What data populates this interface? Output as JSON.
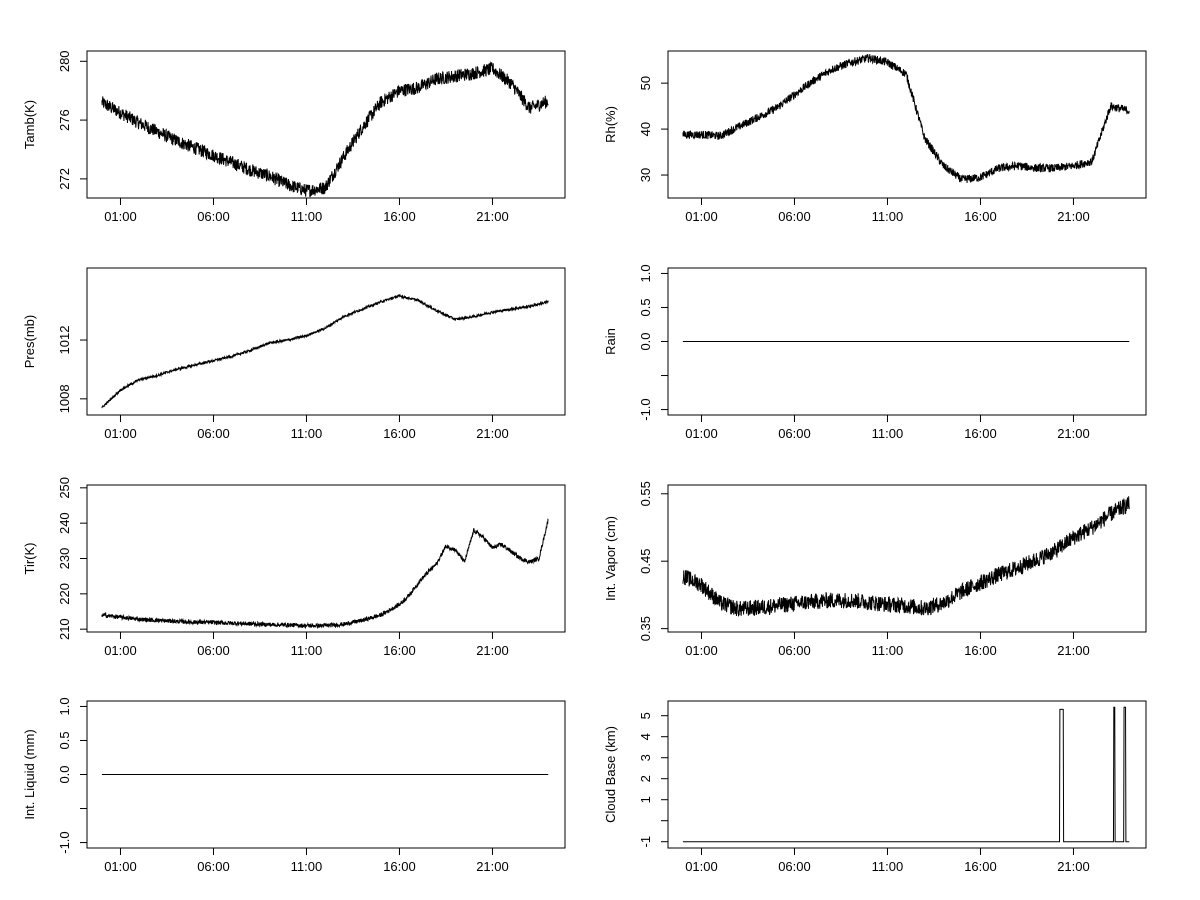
{
  "chart_data": [
    {
      "type": "line",
      "ylabel": "Tamb(K)",
      "x_tick_labels": [
        "01:00",
        "06:00",
        "11:00",
        "16:00",
        "21:00"
      ],
      "x_ticks_hours": [
        1,
        6,
        11,
        16,
        21
      ],
      "xlim_hours": [
        -0.8,
        24.9
      ],
      "ylim": [
        270.7,
        280.7
      ],
      "y_ticks": [
        272,
        276,
        280
      ],
      "y_tick_labels": [
        "272",
        "276",
        "280"
      ],
      "series": [
        {
          "x_hours": [
            0,
            1,
            2,
            3,
            4,
            5,
            6,
            7,
            8,
            9,
            10,
            11,
            12,
            13,
            14,
            15,
            16,
            17,
            18,
            19,
            20,
            21,
            22,
            23,
            24
          ],
          "values": [
            277.2,
            276.5,
            275.8,
            275.2,
            274.6,
            274.1,
            273.6,
            273.1,
            272.6,
            272.2,
            271.6,
            271.2,
            271.4,
            273.5,
            275.5,
            277.2,
            278.0,
            278.2,
            278.8,
            279.0,
            279.2,
            279.5,
            278.5,
            276.8,
            277.3
          ],
          "noise": 0.45
        }
      ]
    },
    {
      "type": "line",
      "ylabel": "Rh(%)",
      "x_tick_labels": [
        "01:00",
        "06:00",
        "11:00",
        "16:00",
        "21:00"
      ],
      "x_ticks_hours": [
        1,
        6,
        11,
        16,
        21
      ],
      "xlim_hours": [
        -0.8,
        24.9
      ],
      "ylim": [
        25,
        57
      ],
      "y_ticks": [
        30,
        40,
        50
      ],
      "y_tick_labels": [
        "30",
        "40",
        "50"
      ],
      "series": [
        {
          "x_hours": [
            0,
            1,
            2,
            3,
            4,
            5,
            6,
            7,
            8,
            9,
            10,
            11,
            12,
            13,
            14,
            15,
            16,
            17,
            18,
            19,
            20,
            21,
            22,
            23,
            24
          ],
          "values": [
            38.8,
            38.8,
            38.5,
            40.5,
            42.5,
            44.5,
            47.5,
            50.5,
            53,
            54.5,
            55.5,
            54.5,
            52,
            38,
            32,
            29,
            29.5,
            31.5,
            32,
            31.5,
            31.5,
            32,
            33,
            45,
            44
          ],
          "noise": 0.9
        }
      ]
    },
    {
      "type": "line",
      "ylabel": "Pres(mb)",
      "x_tick_labels": [
        "01:00",
        "06:00",
        "11:00",
        "16:00",
        "21:00"
      ],
      "x_ticks_hours": [
        1,
        6,
        11,
        16,
        21
      ],
      "xlim_hours": [
        -0.8,
        24.9
      ],
      "ylim": [
        1006.9,
        1016.9
      ],
      "y_ticks": [
        1008,
        1012
      ],
      "y_tick_labels": [
        "1008",
        "1012"
      ],
      "series": [
        {
          "x_hours": [
            0,
            1,
            2,
            3,
            4,
            5,
            6,
            7,
            8,
            9,
            10,
            11,
            12,
            13,
            14,
            15,
            16,
            17,
            18,
            19,
            20,
            21,
            22,
            23,
            24
          ],
          "values": [
            1007.4,
            1008.6,
            1009.3,
            1009.6,
            1010.0,
            1010.3,
            1010.6,
            1010.9,
            1011.3,
            1011.8,
            1012.0,
            1012.3,
            1012.8,
            1013.6,
            1014.1,
            1014.6,
            1015.0,
            1014.7,
            1014.0,
            1013.4,
            1013.6,
            1013.9,
            1014.1,
            1014.3,
            1014.6
          ],
          "noise": 0.08
        }
      ]
    },
    {
      "type": "line",
      "ylabel": "Rain",
      "x_tick_labels": [
        "01:00",
        "06:00",
        "11:00",
        "16:00",
        "21:00"
      ],
      "x_ticks_hours": [
        1,
        6,
        11,
        16,
        21
      ],
      "xlim_hours": [
        -0.8,
        24.9
      ],
      "ylim": [
        -1.08,
        1.08
      ],
      "y_ticks": [
        -1.0,
        -0.5,
        0.0,
        0.5,
        1.0
      ],
      "y_tick_labels": [
        "-1.0",
        "",
        "0.0",
        "0.5",
        "1.0"
      ],
      "series": [
        {
          "x_hours": [
            0,
            24
          ],
          "values": [
            0,
            0
          ],
          "noise": 0
        }
      ]
    },
    {
      "type": "line",
      "ylabel": "Tir(K)",
      "x_tick_labels": [
        "01:00",
        "06:00",
        "11:00",
        "16:00",
        "21:00"
      ],
      "x_ticks_hours": [
        1,
        6,
        11,
        16,
        21
      ],
      "xlim_hours": [
        -0.8,
        24.9
      ],
      "ylim": [
        209.2,
        250.8
      ],
      "y_ticks": [
        210,
        220,
        230,
        240,
        250
      ],
      "y_tick_labels": [
        "210",
        "220",
        "230",
        "240",
        "250"
      ],
      "series": [
        {
          "x_hours": [
            0,
            1,
            2,
            3,
            4,
            5,
            6,
            7,
            8,
            9,
            10,
            11,
            12,
            13,
            14,
            15,
            16,
            16.5,
            17,
            17.5,
            18,
            18.5,
            19,
            19.5,
            20,
            20.5,
            21,
            21.5,
            22,
            22.5,
            23,
            23.5,
            24
          ],
          "values": [
            214.0,
            213.4,
            212.8,
            212.5,
            212.2,
            212.0,
            211.9,
            211.7,
            211.5,
            211.3,
            211.2,
            211.0,
            211.0,
            211.4,
            212.5,
            214.0,
            217.0,
            219.5,
            223.0,
            226.0,
            228.5,
            233.5,
            232.5,
            229.0,
            238.0,
            236.0,
            233.0,
            234.0,
            232.0,
            230.0,
            229.0,
            230.0,
            241.0
          ],
          "noise": 0.6
        }
      ]
    },
    {
      "type": "line",
      "ylabel": "Int. Vapor (cm)",
      "x_tick_labels": [
        "01:00",
        "06:00",
        "11:00",
        "16:00",
        "21:00"
      ],
      "x_ticks_hours": [
        1,
        6,
        11,
        16,
        21
      ],
      "xlim_hours": [
        -0.8,
        24.9
      ],
      "ylim": [
        0.345,
        0.563
      ],
      "y_ticks": [
        0.35,
        0.45,
        0.55
      ],
      "y_tick_labels": [
        "0.35",
        "0.45",
        "0.55"
      ],
      "series": [
        {
          "x_hours": [
            0,
            1,
            2,
            3,
            4,
            5,
            6,
            7,
            8,
            9,
            10,
            11,
            12,
            13,
            14,
            15,
            16,
            17,
            18,
            19,
            20,
            21,
            22,
            23,
            24
          ],
          "values": [
            0.428,
            0.415,
            0.388,
            0.379,
            0.381,
            0.384,
            0.387,
            0.39,
            0.392,
            0.392,
            0.389,
            0.386,
            0.384,
            0.38,
            0.388,
            0.405,
            0.418,
            0.43,
            0.44,
            0.452,
            0.465,
            0.485,
            0.5,
            0.52,
            0.535
          ],
          "noise": 0.012
        }
      ]
    },
    {
      "type": "line",
      "ylabel": "Int. Liquid (mm)",
      "x_tick_labels": [
        "01:00",
        "06:00",
        "11:00",
        "16:00",
        "21:00"
      ],
      "x_ticks_hours": [
        1,
        6,
        11,
        16,
        21
      ],
      "xlim_hours": [
        -0.8,
        24.9
      ],
      "ylim": [
        -1.08,
        1.08
      ],
      "y_ticks": [
        -1.0,
        -0.5,
        0.0,
        0.5,
        1.0
      ],
      "y_tick_labels": [
        "-1.0",
        "",
        "0.0",
        "0.5",
        "1.0"
      ],
      "series": [
        {
          "x_hours": [
            0,
            24
          ],
          "values": [
            0,
            0
          ],
          "noise": 0
        }
      ]
    },
    {
      "type": "line",
      "ylabel": "Cloud Base (km)",
      "x_tick_labels": [
        "01:00",
        "06:00",
        "11:00",
        "16:00",
        "21:00"
      ],
      "x_ticks_hours": [
        1,
        6,
        11,
        16,
        21
      ],
      "xlim_hours": [
        -0.8,
        24.9
      ],
      "ylim": [
        -1.3,
        5.7
      ],
      "y_ticks": [
        -1,
        0,
        1,
        2,
        3,
        4,
        5
      ],
      "y_tick_labels": [
        "-1",
        "",
        "1",
        "2",
        "3",
        "4",
        "5"
      ],
      "series": [
        {
          "x_hours": [
            0,
            20.25,
            20.27,
            20.45,
            20.47,
            23.15,
            23.17,
            23.22,
            23.24,
            23.7,
            23.72,
            23.8,
            23.82,
            24
          ],
          "values": [
            -1,
            -1,
            5.3,
            5.3,
            -1,
            -1,
            5.4,
            5.4,
            -1,
            -1,
            5.4,
            5.4,
            -1,
            -1
          ],
          "noise": 0
        }
      ]
    }
  ]
}
